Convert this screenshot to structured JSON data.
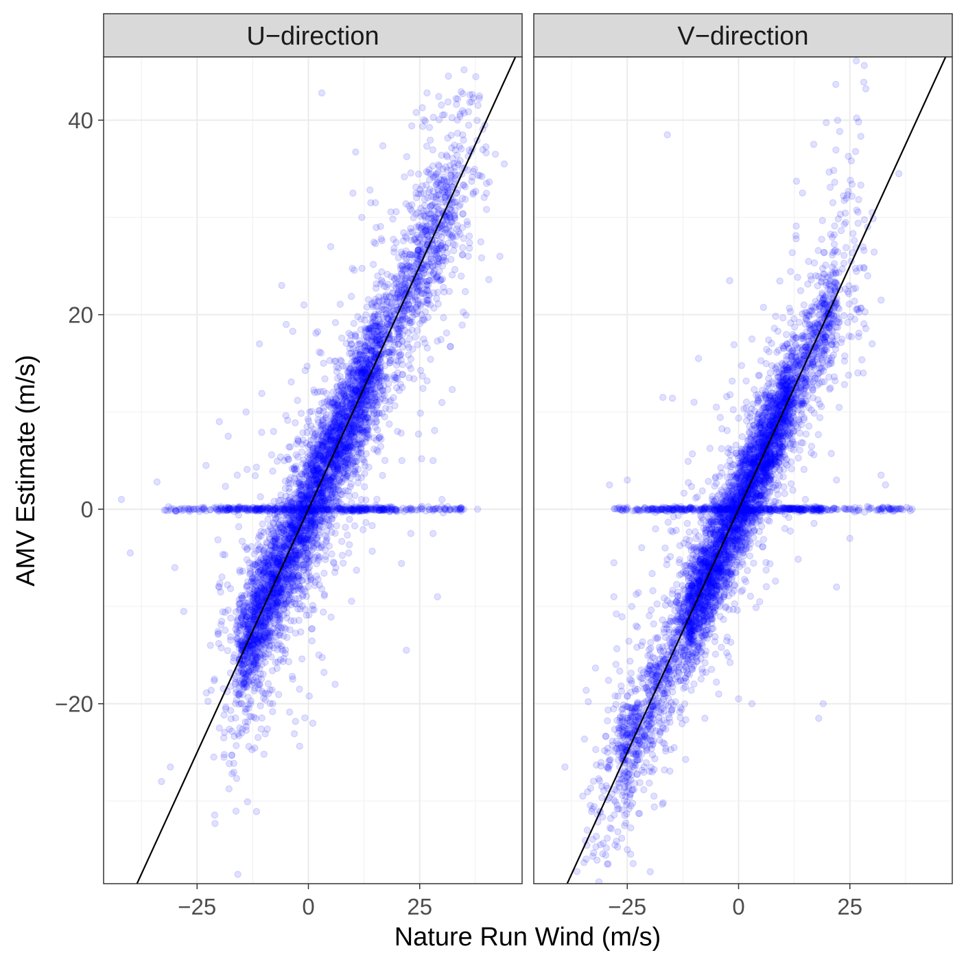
{
  "chart_data": {
    "type": "scatter",
    "xlabel": "Nature Run Wind (m/s)",
    "ylabel": "AMV Estimate (m/s)",
    "xlim": [
      -46,
      48
    ],
    "ylim": [
      -38.5,
      46.5
    ],
    "x_ticks": [
      -25,
      0,
      25
    ],
    "y_ticks": [
      -20,
      0,
      20,
      40
    ],
    "x_tick_labels": [
      "−25",
      "0",
      "25"
    ],
    "y_tick_labels": [
      "−20",
      "0",
      "20",
      "40"
    ],
    "grid": true,
    "point_color": "#0000ff",
    "point_opacity": 0.12,
    "reference_line": {
      "slope": 1,
      "intercept": 0,
      "color": "#000000"
    },
    "panels": [
      {
        "title": "U−direction",
        "bulk": {
          "x_min": -14,
          "x_max": 33,
          "spread": 2.6,
          "mode_band": [
            -16,
            16
          ]
        },
        "zero_row": {
          "x_min": -33,
          "x_max": 35,
          "y": 0
        },
        "outliers": [
          [
            3,
            42.8
          ],
          [
            -42,
            1
          ],
          [
            -40,
            -4.5
          ],
          [
            -33,
            -28
          ],
          [
            -31,
            -26.5
          ],
          [
            -34,
            2.8
          ],
          [
            -30,
            -6
          ],
          [
            -28,
            -10.5
          ],
          [
            -22,
            -14
          ],
          [
            -19,
            -23.5
          ],
          [
            -20,
            -22.5
          ],
          [
            -15,
            -23
          ],
          [
            -13,
            -20
          ],
          [
            -8,
            -20
          ],
          [
            1,
            -22
          ],
          [
            -2,
            -18.5
          ],
          [
            6,
            -18
          ],
          [
            22,
            -14.5
          ],
          [
            28,
            -2.5
          ],
          [
            29,
            -9
          ],
          [
            38,
            0
          ],
          [
            43,
            26
          ],
          [
            42,
            36.5
          ],
          [
            44,
            35.5
          ],
          [
            40,
            33.5
          ],
          [
            14,
            31.5
          ],
          [
            12,
            30
          ],
          [
            10,
            32.5
          ],
          [
            5,
            27
          ],
          [
            -6,
            23
          ],
          [
            -1,
            21
          ],
          [
            -5,
            19
          ],
          [
            -11,
            17
          ],
          [
            -14,
            10
          ],
          [
            -18,
            7.5
          ],
          [
            -23,
            4.5
          ],
          [
            -20,
            9
          ],
          [
            23,
            -2.5
          ],
          [
            21,
            5
          ],
          [
            20,
            8
          ],
          [
            28,
            5
          ],
          [
            30,
            1
          ]
        ]
      },
      {
        "title": "V−direction",
        "bulk": {
          "x_min": -27,
          "x_max": 22,
          "spread": 2.3,
          "mode_band": [
            -12,
            12
          ]
        },
        "zero_row": {
          "x_min": -28,
          "x_max": 39,
          "y": 0
        },
        "outliers": [
          [
            -16,
            38.5
          ],
          [
            -39,
            -26.5
          ],
          [
            -35,
            -29.5
          ],
          [
            -31,
            -34.5
          ],
          [
            -34,
            -33
          ],
          [
            -25,
            -35
          ],
          [
            -19,
            -29.5
          ],
          [
            -17,
            -24
          ],
          [
            0,
            -19.5
          ],
          [
            3,
            -20
          ],
          [
            18,
            -21.5
          ],
          [
            19,
            -20
          ],
          [
            36,
            0
          ],
          [
            39,
            0
          ],
          [
            33,
            2.5
          ],
          [
            32,
            3.5
          ],
          [
            36,
            34.5
          ],
          [
            30,
            30.5
          ],
          [
            29,
            24
          ],
          [
            30,
            17
          ],
          [
            32,
            21.5
          ],
          [
            28,
            14
          ],
          [
            -29,
            2.5
          ],
          [
            -28,
            -5.5
          ],
          [
            -25,
            3
          ],
          [
            -17,
            11.5
          ],
          [
            -9,
            15.5
          ],
          [
            -10,
            11
          ],
          [
            -5,
            10.5
          ],
          [
            -2,
            23.5
          ],
          [
            3,
            17.5
          ],
          [
            15,
            1
          ],
          [
            22,
            3
          ],
          [
            25,
            -3
          ],
          [
            22,
            -8
          ],
          [
            -28,
            -9
          ],
          [
            -24,
            -10
          ]
        ]
      }
    ]
  }
}
